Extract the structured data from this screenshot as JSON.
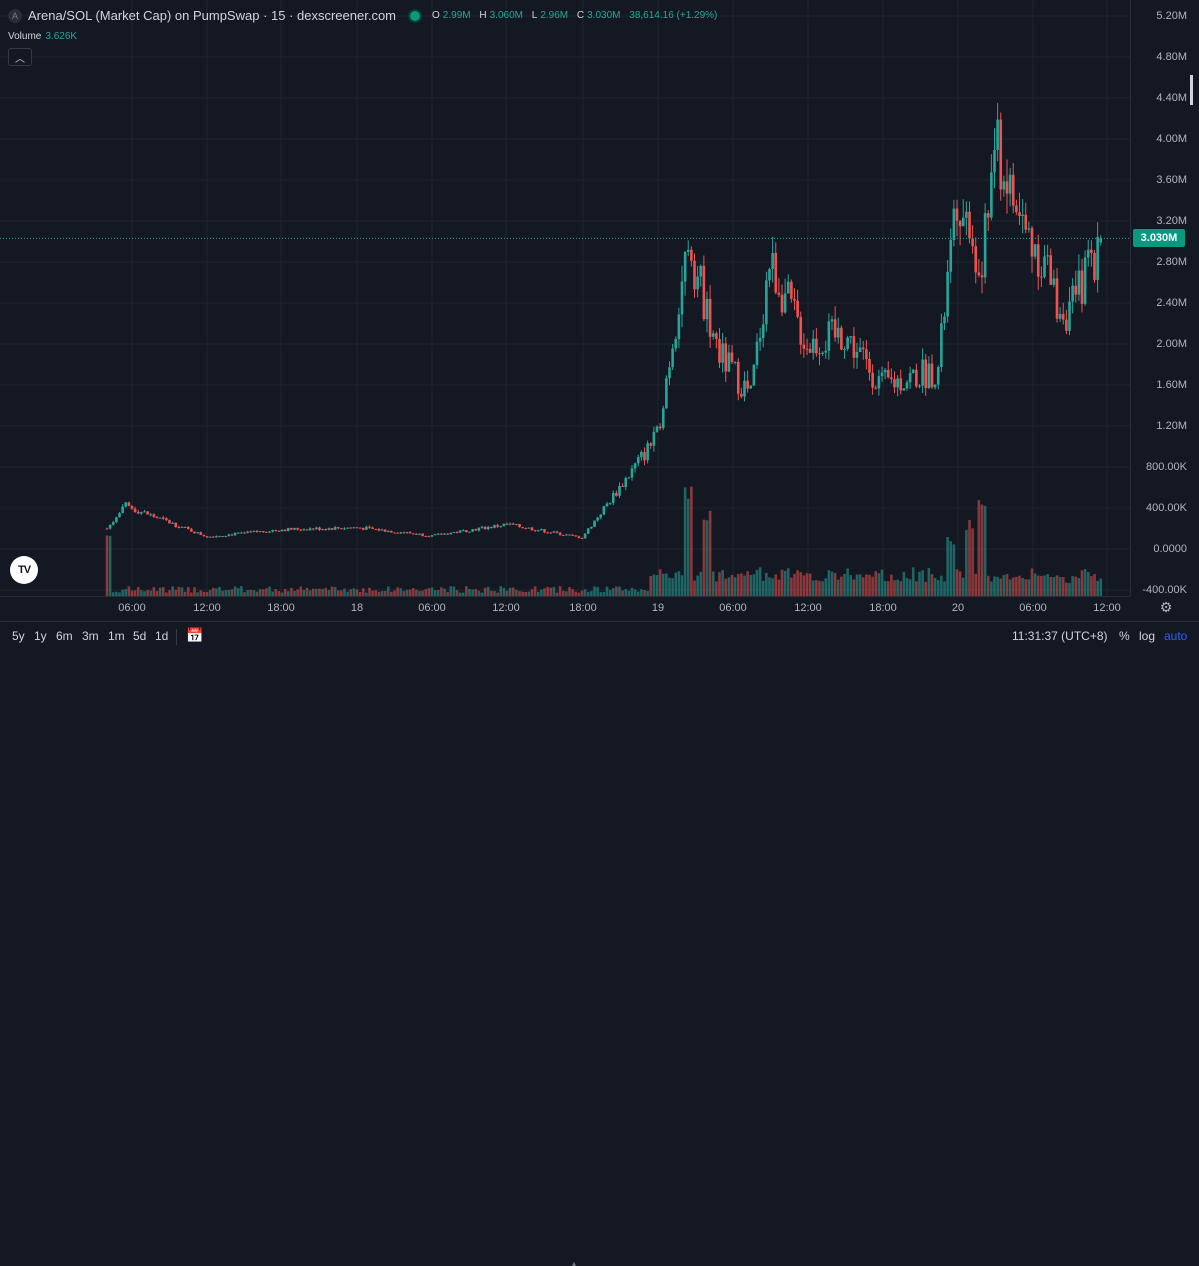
{
  "header": {
    "symbol_badge": "A",
    "title": "Arena/SOL (Market Cap) on PumpSwap · 15 · dexscreener.com",
    "ohlc": {
      "o_label": "O",
      "o_value": "2.99M",
      "h_label": "H",
      "h_value": "3.060M",
      "l_label": "L",
      "l_value": "2.96M",
      "c_label": "C",
      "c_value": "3.030M",
      "change": "38,614.16 (+1.29%)"
    }
  },
  "volume_legend": {
    "label": "Volume",
    "value": "3.626K"
  },
  "collapse_icon": "chevron-up-icon",
  "price_axis": {
    "ticks": [
      "5.20M",
      "4.80M",
      "4.40M",
      "4.00M",
      "3.60M",
      "3.20M",
      "2.80M",
      "2.40M",
      "2.00M",
      "1.60M",
      "1.20M",
      "800.00K",
      "400.00K",
      "0.0000",
      "-400.00K"
    ],
    "current_price_label": "3.030M"
  },
  "time_axis": {
    "ticks": [
      "06:00",
      "12:00",
      "18:00",
      "18",
      "06:00",
      "12:00",
      "18:00",
      "19",
      "06:00",
      "12:00",
      "18:00",
      "20",
      "06:00",
      "12:00"
    ]
  },
  "bottom_bar": {
    "ranges": [
      "5y",
      "1y",
      "6m",
      "3m",
      "1m",
      "5d",
      "1d"
    ],
    "clock": "11:31:37 (UTC+8)",
    "percent": "%",
    "log": "log",
    "auto": "auto"
  },
  "colors": {
    "up": "#26a69a",
    "down": "#ef5350",
    "background": "#141822",
    "grid": "#1f2430",
    "accent": "#2962ff"
  },
  "chart_data": {
    "type": "candlestick",
    "title": "Arena/SOL (Market Cap) on PumpSwap · 15 · dexscreener.com",
    "y_unit": "market cap (USD)",
    "ylim": [
      -400000,
      5200000
    ],
    "x_range": [
      "Day 17 ~03:00",
      "Day 20 ~12:00"
    ],
    "interval_minutes": 15,
    "last": {
      "open": 2990000,
      "high": 3060000,
      "low": 2960000,
      "close": 3030000
    },
    "approx_close_path": [
      {
        "time": "17 04:00",
        "close": 200000
      },
      {
        "time": "17 05:30",
        "close": 420000
      },
      {
        "time": "17 12:00",
        "close": 120000
      },
      {
        "time": "17 18:00",
        "close": 190000
      },
      {
        "time": "18 00:00",
        "close": 210000
      },
      {
        "time": "18 06:00",
        "close": 130000
      },
      {
        "time": "18 12:00",
        "close": 240000
      },
      {
        "time": "18 18:00",
        "close": 110000
      },
      {
        "time": "18 21:00",
        "close": 600000
      },
      {
        "time": "19 00:00",
        "close": 1100000
      },
      {
        "time": "19 02:30",
        "close": 3000000
      },
      {
        "time": "19 05:00",
        "close": 1900000
      },
      {
        "time": "19 07:30",
        "close": 1500000
      },
      {
        "time": "19 09:00",
        "close": 2800000
      },
      {
        "time": "19 12:00",
        "close": 2000000
      },
      {
        "time": "19 15:00",
        "close": 2100000
      },
      {
        "time": "19 18:00",
        "close": 1600000
      },
      {
        "time": "19 22:30",
        "close": 1750000
      },
      {
        "time": "20 00:00",
        "close": 3500000
      },
      {
        "time": "20 02:00",
        "close": 2700000
      },
      {
        "time": "20 03:00",
        "close": 3950000
      },
      {
        "time": "20 05:00",
        "close": 3200000
      },
      {
        "time": "20 07:00",
        "close": 2800000
      },
      {
        "time": "20 08:00",
        "close": 2400000
      },
      {
        "time": "20 09:00",
        "close": 2300000
      },
      {
        "time": "20 11:30",
        "close": 3030000
      }
    ],
    "volume_spikes": [
      {
        "time": "17 04:00",
        "relative": 0.6
      },
      {
        "time": "19 02:30",
        "relative": 1.0
      },
      {
        "time": "19 04:00",
        "relative": 0.8
      },
      {
        "time": "19 23:30",
        "relative": 0.55
      },
      {
        "time": "20 01:00",
        "relative": 0.7
      },
      {
        "time": "20 02:00",
        "relative": 0.95
      }
    ]
  }
}
